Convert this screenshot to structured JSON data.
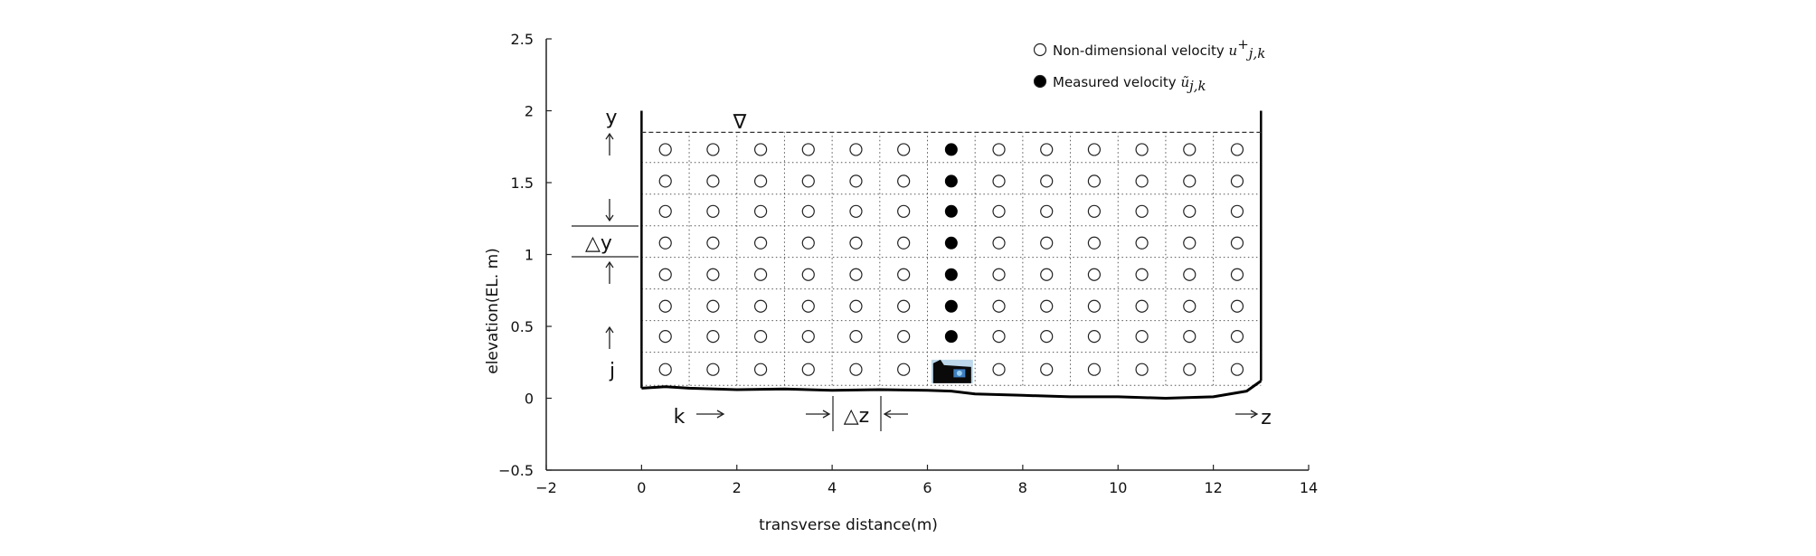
{
  "chart_data": {
    "type": "scatter",
    "title": "",
    "xlabel": "transverse distance(m)",
    "ylabel": "elevation(EL. m)",
    "xlim": [
      -2,
      14
    ],
    "ylim": [
      -0.5,
      2.5
    ],
    "xticks": [
      "−2",
      "0",
      "2",
      "4",
      "6",
      "8",
      "10",
      "12",
      "14"
    ],
    "xtick_values": [
      -2,
      0,
      2,
      4,
      6,
      8,
      10,
      12,
      14
    ],
    "yticks": [
      "2.5",
      "2",
      "1.5",
      "1",
      "0.5",
      "0",
      "−0.5"
    ],
    "ytick_values": [
      2.5,
      2,
      1.5,
      1,
      0.5,
      0,
      -0.5
    ],
    "grid": false,
    "legend_position": "top-right",
    "water_surface": 1.85,
    "channel_walls_x": [
      0,
      13
    ],
    "channel_top": 2.0,
    "bed_profile": {
      "x": [
        0,
        0.5,
        1,
        2,
        3,
        4,
        5,
        6,
        6.5,
        7,
        8,
        9,
        10,
        11,
        12,
        12.7,
        13
      ],
      "y": [
        0.07,
        0.08,
        0.07,
        0.06,
        0.065,
        0.055,
        0.06,
        0.055,
        0.05,
        0.03,
        0.02,
        0.01,
        0.01,
        0.0,
        0.01,
        0.05,
        0.12
      ]
    },
    "cell_boundaries_z": [
      0,
      1,
      2,
      3,
      4,
      5,
      6,
      7,
      8,
      9,
      10,
      11,
      12,
      13
    ],
    "cell_boundaries_y": [
      0.09,
      0.32,
      0.54,
      0.76,
      0.98,
      1.2,
      1.42,
      1.64,
      1.85
    ],
    "series": [
      {
        "name": "Non-dimensional velocity",
        "symbol": "open-circle",
        "z": [
          0.5,
          1.5,
          2.5,
          3.5,
          4.5,
          5.5,
          6.5,
          7.5,
          8.5,
          9.5,
          10.5,
          11.5,
          12.5
        ],
        "y": [
          0.2,
          0.43,
          0.64,
          0.86,
          1.08,
          1.3,
          1.51,
          1.73
        ],
        "excluded_column": 6.5
      },
      {
        "name": "Measured velocity",
        "symbol": "filled-circle",
        "x": [
          6.5,
          6.5,
          6.5,
          6.5,
          6.5,
          6.5,
          6.5
        ],
        "y": [
          0.43,
          0.64,
          0.86,
          1.08,
          1.3,
          1.51,
          1.73
        ]
      }
    ],
    "legend": [
      {
        "text": "Non-dimensional velocity",
        "math_base": "u",
        "math_sup": "+",
        "math_sub": "j,k",
        "symbol": "open-circle"
      },
      {
        "text": "Measured velocity",
        "math_base": "ũ",
        "math_sup": "",
        "math_sub": "j,k",
        "symbol": "filled-circle"
      }
    ],
    "annotations": {
      "y": "y",
      "j": "j",
      "dy": "△y",
      "k": "k",
      "dz": "△z",
      "z": "z",
      "water_symbol": "∇"
    },
    "instrument": {
      "x": 6.5,
      "y": 0.18,
      "icon": "boat-instrument-icon"
    }
  }
}
